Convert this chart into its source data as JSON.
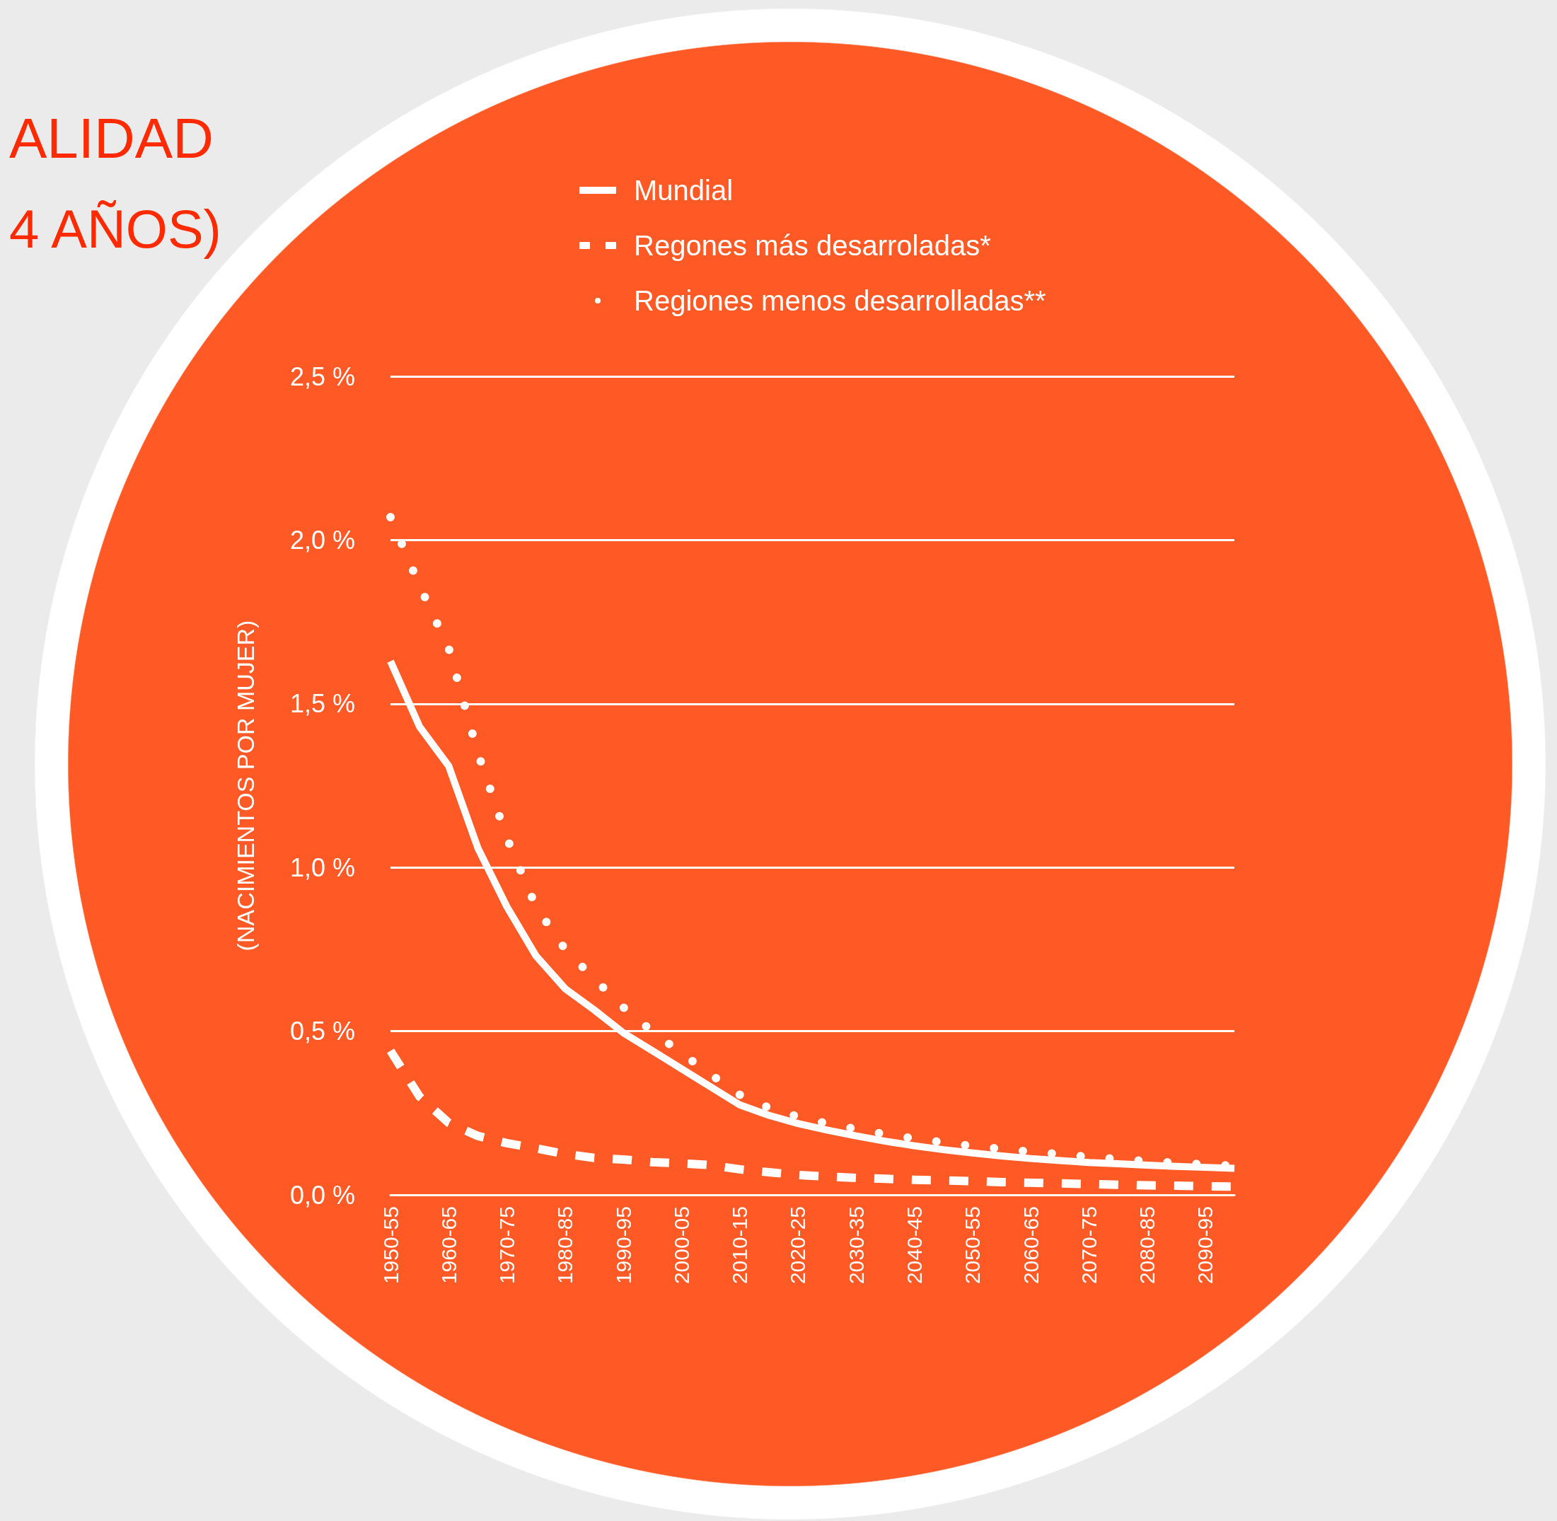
{
  "chart_data": {
    "type": "line",
    "title": "ALIDAD",
    "subtitle": "4 AÑOS)",
    "ylabel": "(NACIMIENTOS POR MUJER)",
    "categories": [
      "1950-55",
      null,
      "1960-65",
      null,
      "1970-75",
      null,
      "1980-85",
      null,
      "1990-95",
      null,
      "2000-05",
      null,
      "2010-15",
      null,
      "2020-25",
      null,
      "2030-35",
      null,
      "2040-45",
      null,
      "2050-55",
      null,
      "2060-65",
      null,
      "2070-75",
      null,
      "2080-85",
      null,
      "2090-95",
      null
    ],
    "series": [
      {
        "name": "Mundial",
        "color": "#ffffff",
        "line_style": "solid",
        "values": [
          1.63,
          1.43,
          1.31,
          1.06,
          0.88,
          0.73,
          0.63,
          0.565,
          0.495,
          0.44,
          0.385,
          0.33,
          0.275,
          0.243,
          0.218,
          0.198,
          0.18,
          0.164,
          0.15,
          0.138,
          0.128,
          0.119,
          0.111,
          0.105,
          0.099,
          0.095,
          0.091,
          0.087,
          0.084,
          0.081
        ]
      },
      {
        "name": "Regones más desarroladas*",
        "color": "#ffffff",
        "line_style": "dashed",
        "values": [
          0.44,
          0.3,
          0.22,
          0.18,
          0.158,
          0.142,
          0.125,
          0.113,
          0.108,
          0.1,
          0.096,
          0.091,
          0.078,
          0.069,
          0.061,
          0.056,
          0.052,
          0.049,
          0.046,
          0.044,
          0.042,
          0.039,
          0.037,
          0.035,
          0.033,
          0.031,
          0.029,
          0.028,
          0.026,
          0.025
        ]
      },
      {
        "name": "Regiones menos desarrolladas**",
        "color": "#ffffff",
        "line_style": "dotted",
        "values": [
          2.07,
          1.86,
          1.67,
          1.35,
          1.09,
          0.88,
          0.75,
          0.66,
          0.573,
          0.499,
          0.433,
          0.368,
          0.306,
          0.266,
          0.239,
          0.218,
          0.201,
          0.185,
          0.172,
          0.16,
          0.149,
          0.14,
          0.132,
          0.124,
          0.116,
          0.109,
          0.103,
          0.098,
          0.093,
          0.089
        ]
      }
    ],
    "ylim": [
      0,
      2.5
    ],
    "yticks": [
      {
        "value": 0,
        "label": "0,0 %"
      },
      {
        "value": 0.5,
        "label": "0,5 %"
      },
      {
        "value": 1,
        "label": "1,0 %"
      },
      {
        "value": 1.5,
        "label": "1,5 %"
      },
      {
        "value": 2,
        "label": "2,0 %"
      },
      {
        "value": 2.5,
        "label": "2,5 %"
      }
    ],
    "grid": "y",
    "legend": "top",
    "marker": "none"
  }
}
